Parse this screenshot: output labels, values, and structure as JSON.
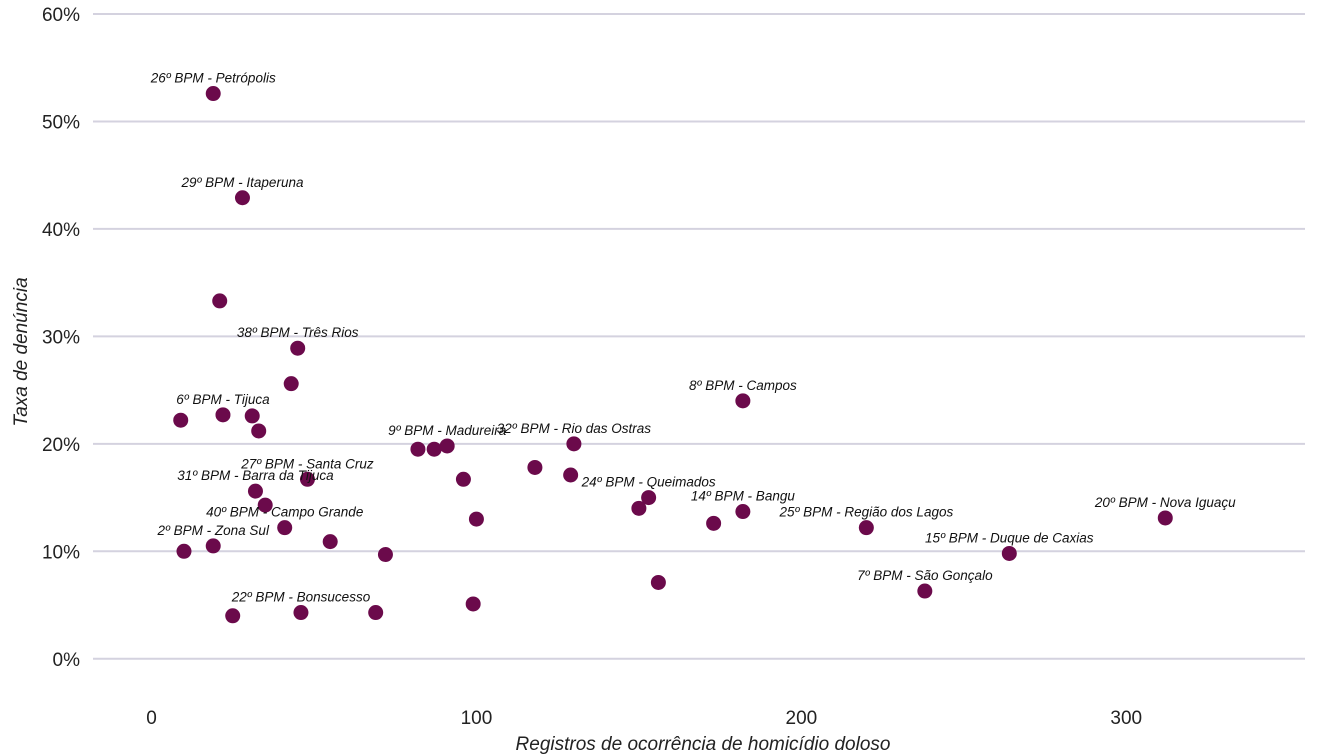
{
  "chart_data": {
    "type": "scatter",
    "title": "",
    "xlabel": "Registros de ocorrência de homicídio doloso",
    "ylabel": "Taxa de denúncia",
    "xlim": [
      -18,
      355
    ],
    "ylim": [
      -3,
      60
    ],
    "x_ticks": [
      0,
      100,
      200,
      300
    ],
    "y_ticks": [
      0,
      10,
      20,
      30,
      40,
      50,
      60
    ],
    "y_tick_labels": [
      "0%",
      "10%",
      "20%",
      "30%",
      "40%",
      "50%",
      "60%"
    ],
    "grid": "horizontal",
    "colors": {
      "point": "#6b0a4b",
      "grid": "#d4d2df",
      "text": "#222222"
    },
    "points": [
      {
        "x": 19,
        "y": 52.6,
        "label": "26º BPM - Petrópolis"
      },
      {
        "x": 28,
        "y": 42.9,
        "label": "29º BPM - Itaperuna"
      },
      {
        "x": 21,
        "y": 33.3,
        "label": ""
      },
      {
        "x": 45,
        "y": 28.9,
        "label": "38º BPM - Três Rios"
      },
      {
        "x": 43,
        "y": 25.6,
        "label": ""
      },
      {
        "x": 182,
        "y": 24.0,
        "label": "8º BPM - Campos"
      },
      {
        "x": 22,
        "y": 22.7,
        "label": "6º BPM - Tijuca"
      },
      {
        "x": 31,
        "y": 22.6,
        "label": ""
      },
      {
        "x": 9,
        "y": 22.2,
        "label": ""
      },
      {
        "x": 33,
        "y": 21.2,
        "label": ""
      },
      {
        "x": 130,
        "y": 20.0,
        "label": "32º BPM - Rio das Ostras"
      },
      {
        "x": 91,
        "y": 19.8,
        "label": "9º BPM - Madureira"
      },
      {
        "x": 82,
        "y": 19.5,
        "label": ""
      },
      {
        "x": 87,
        "y": 19.5,
        "label": ""
      },
      {
        "x": 118,
        "y": 17.8,
        "label": ""
      },
      {
        "x": 129,
        "y": 17.1,
        "label": ""
      },
      {
        "x": 48,
        "y": 16.7,
        "label": "27º BPM - Santa Cruz"
      },
      {
        "x": 96,
        "y": 16.7,
        "label": ""
      },
      {
        "x": 32,
        "y": 15.6,
        "label": "31º BPM - Barra da Tijuca"
      },
      {
        "x": 153,
        "y": 15.0,
        "label": "24º BPM - Queimados"
      },
      {
        "x": 35,
        "y": 14.3,
        "label": ""
      },
      {
        "x": 150,
        "y": 14.0,
        "label": ""
      },
      {
        "x": 182,
        "y": 13.7,
        "label": "14º BPM - Bangu"
      },
      {
        "x": 100,
        "y": 13.0,
        "label": ""
      },
      {
        "x": 312,
        "y": 13.1,
        "label": "20º BPM - Nova Iguaçu"
      },
      {
        "x": 173,
        "y": 12.6,
        "label": ""
      },
      {
        "x": 41,
        "y": 12.2,
        "label": "40º BPM - Campo Grande"
      },
      {
        "x": 220,
        "y": 12.2,
        "label": "25º BPM - Região dos Lagos"
      },
      {
        "x": 55,
        "y": 10.9,
        "label": ""
      },
      {
        "x": 19,
        "y": 10.5,
        "label": "2º BPM - Zona Sul"
      },
      {
        "x": 10,
        "y": 10.0,
        "label": ""
      },
      {
        "x": 264,
        "y": 9.8,
        "label": "15º BPM - Duque de Caxias"
      },
      {
        "x": 72,
        "y": 9.7,
        "label": ""
      },
      {
        "x": 156,
        "y": 7.1,
        "label": ""
      },
      {
        "x": 238,
        "y": 6.3,
        "label": "7º BPM - São Gonçalo"
      },
      {
        "x": 99,
        "y": 5.1,
        "label": ""
      },
      {
        "x": 46,
        "y": 4.3,
        "label": "22º BPM - Bonsucesso"
      },
      {
        "x": 69,
        "y": 4.3,
        "label": ""
      },
      {
        "x": 25,
        "y": 4.0,
        "label": ""
      }
    ]
  }
}
